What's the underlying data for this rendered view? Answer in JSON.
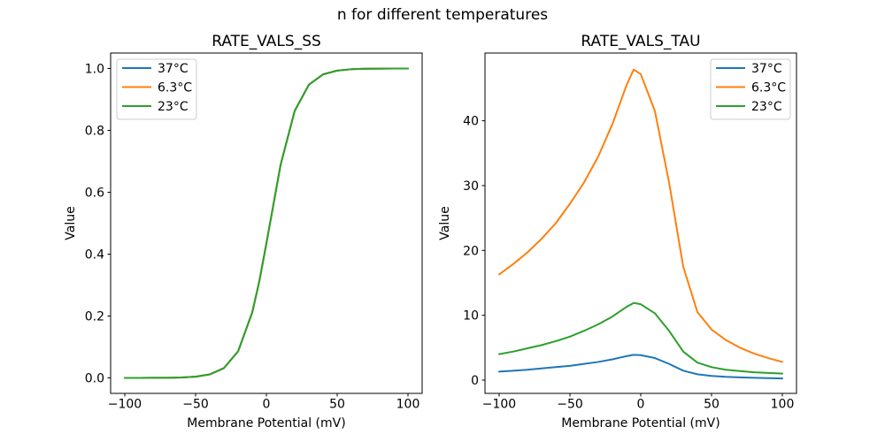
{
  "figure": {
    "title": "n for different temperatures",
    "background": "#ffffff",
    "text_color": "#000000"
  },
  "chart_data": [
    {
      "type": "line",
      "title": "RATE_VALS_SS",
      "xlabel": "Membrane Potential (mV)",
      "ylabel": "Value",
      "xlim": [
        -110,
        110
      ],
      "ylim": [
        -0.05,
        1.05
      ],
      "grid": false,
      "xticks": {
        "values": [
          -100,
          -50,
          0,
          50,
          100
        ],
        "labels": [
          "−100",
          "−50",
          "0",
          "50",
          "100"
        ]
      },
      "yticks": {
        "values": [
          0.0,
          0.2,
          0.4,
          0.6,
          0.8,
          1.0
        ],
        "labels": [
          "0.0",
          "0.2",
          "0.4",
          "0.6",
          "0.8",
          "1.0"
        ]
      },
      "legend": {
        "position": "upper-left",
        "entries": [
          "37°C",
          "6.3°C",
          "23°C"
        ]
      },
      "note": "all three temperature curves coincide exactly; green (drawn last) is the visible curve",
      "x": [
        -100,
        -90,
        -80,
        -70,
        -60,
        -50,
        -40,
        -30,
        -20,
        -10,
        -5,
        0,
        10,
        20,
        30,
        40,
        50,
        60,
        70,
        80,
        90,
        100
      ],
      "series": [
        {
          "name": "37°C",
          "color": "#1f77b4",
          "values": [
            0.0,
            0.0001,
            0.0002,
            0.0005,
            0.0014,
            0.004,
            0.0113,
            0.0317,
            0.0856,
            0.2115,
            0.3123,
            0.4346,
            0.6877,
            0.8632,
            0.9476,
            0.981,
            0.9933,
            0.9977,
            0.9992,
            0.9997,
            0.9999,
            1.0
          ]
        },
        {
          "name": "6.3°C",
          "color": "#ff7f0e",
          "values": [
            0.0,
            0.0001,
            0.0002,
            0.0005,
            0.0014,
            0.004,
            0.0113,
            0.0317,
            0.0856,
            0.2115,
            0.3123,
            0.4346,
            0.6877,
            0.8632,
            0.9476,
            0.981,
            0.9933,
            0.9977,
            0.9992,
            0.9997,
            0.9999,
            1.0
          ]
        },
        {
          "name": "23°C",
          "color": "#2ca02c",
          "values": [
            0.0,
            0.0001,
            0.0002,
            0.0005,
            0.0014,
            0.004,
            0.0113,
            0.0317,
            0.0856,
            0.2115,
            0.3123,
            0.4346,
            0.6877,
            0.8632,
            0.9476,
            0.981,
            0.9933,
            0.9977,
            0.9992,
            0.9997,
            0.9999,
            1.0
          ]
        }
      ]
    },
    {
      "type": "line",
      "title": "RATE_VALS_TAU",
      "xlabel": "Membrane Potential (mV)",
      "ylabel": "Value",
      "xlim": [
        -110,
        110
      ],
      "ylim": [
        -2.05,
        50.45
      ],
      "grid": false,
      "xticks": {
        "values": [
          -100,
          -50,
          0,
          50,
          100
        ],
        "labels": [
          "−100",
          "−50",
          "0",
          "50",
          "100"
        ]
      },
      "yticks": {
        "values": [
          0,
          10,
          20,
          30,
          40
        ],
        "labels": [
          "0",
          "10",
          "20",
          "30",
          "40"
        ]
      },
      "legend": {
        "position": "upper-right",
        "entries": [
          "37°C",
          "6.3°C",
          "23°C"
        ]
      },
      "note": "bell-shaped time-constant curves peaking near −5 mV; 6.3°C peaks ≈48, 23°C ≈12, 37°C ≈3.9",
      "x": [
        -100,
        -90,
        -80,
        -70,
        -60,
        -50,
        -40,
        -30,
        -20,
        -10,
        -5,
        0,
        10,
        20,
        30,
        40,
        50,
        60,
        70,
        80,
        90,
        100
      ],
      "series": [
        {
          "name": "37°C",
          "color": "#1f77b4",
          "values": [
            1.3,
            1.45,
            1.6,
            1.8,
            2.0,
            2.2,
            2.5,
            2.8,
            3.2,
            3.7,
            3.9,
            3.85,
            3.4,
            2.5,
            1.45,
            0.9,
            0.65,
            0.5,
            0.42,
            0.36,
            0.3,
            0.25
          ]
        },
        {
          "name": "6.3°C",
          "color": "#ff7f0e",
          "values": [
            16.3,
            17.9,
            19.7,
            21.8,
            24.2,
            27.2,
            30.5,
            34.5,
            39.5,
            45.5,
            47.9,
            47.2,
            41.5,
            30.5,
            17.5,
            10.5,
            7.8,
            6.2,
            5.0,
            4.1,
            3.4,
            2.8
          ]
        },
        {
          "name": "23°C",
          "color": "#2ca02c",
          "values": [
            4.0,
            4.4,
            4.9,
            5.4,
            6.0,
            6.7,
            7.6,
            8.6,
            9.8,
            11.3,
            11.9,
            11.7,
            10.3,
            7.6,
            4.4,
            2.7,
            2.0,
            1.6,
            1.4,
            1.2,
            1.1,
            1.0
          ]
        }
      ]
    }
  ]
}
